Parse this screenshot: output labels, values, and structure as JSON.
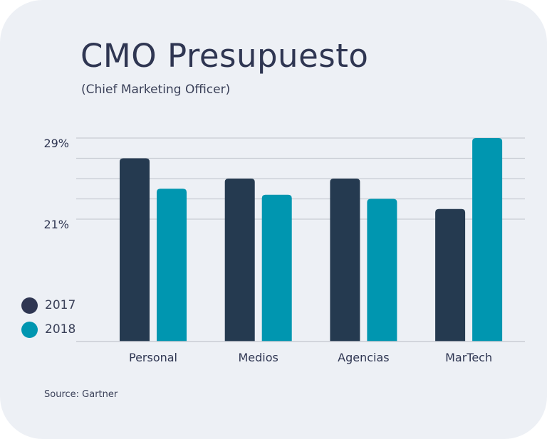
{
  "colors": {
    "background": "#edf0f5",
    "series_2017": "#253a50",
    "series_2018": "#0096b0",
    "legend_2017": "#2f3652",
    "gridline": "#c9ccd4",
    "text": "#2f3652"
  },
  "source": "Source: Gartner",
  "chart_data": {
    "type": "bar",
    "title": "CMO Presupuesto",
    "subtitle": "(Chief Marketing Officer)",
    "xlabel": "",
    "ylabel": "",
    "categories": [
      "Personal",
      "Medios",
      "Agencias",
      "MarTech"
    ],
    "series": [
      {
        "name": "2017",
        "values": [
          27,
          25,
          25,
          22
        ]
      },
      {
        "name": "2018",
        "values": [
          24,
          23.4,
          23,
          29
        ]
      }
    ],
    "y_ticks": [
      29,
      27,
      25,
      23,
      21
    ],
    "y_tick_labels": [
      "29%",
      "",
      "",
      "",
      "21%"
    ],
    "ylim": [
      9,
      29
    ],
    "axis_break": true,
    "grid": true,
    "legend": "left"
  }
}
